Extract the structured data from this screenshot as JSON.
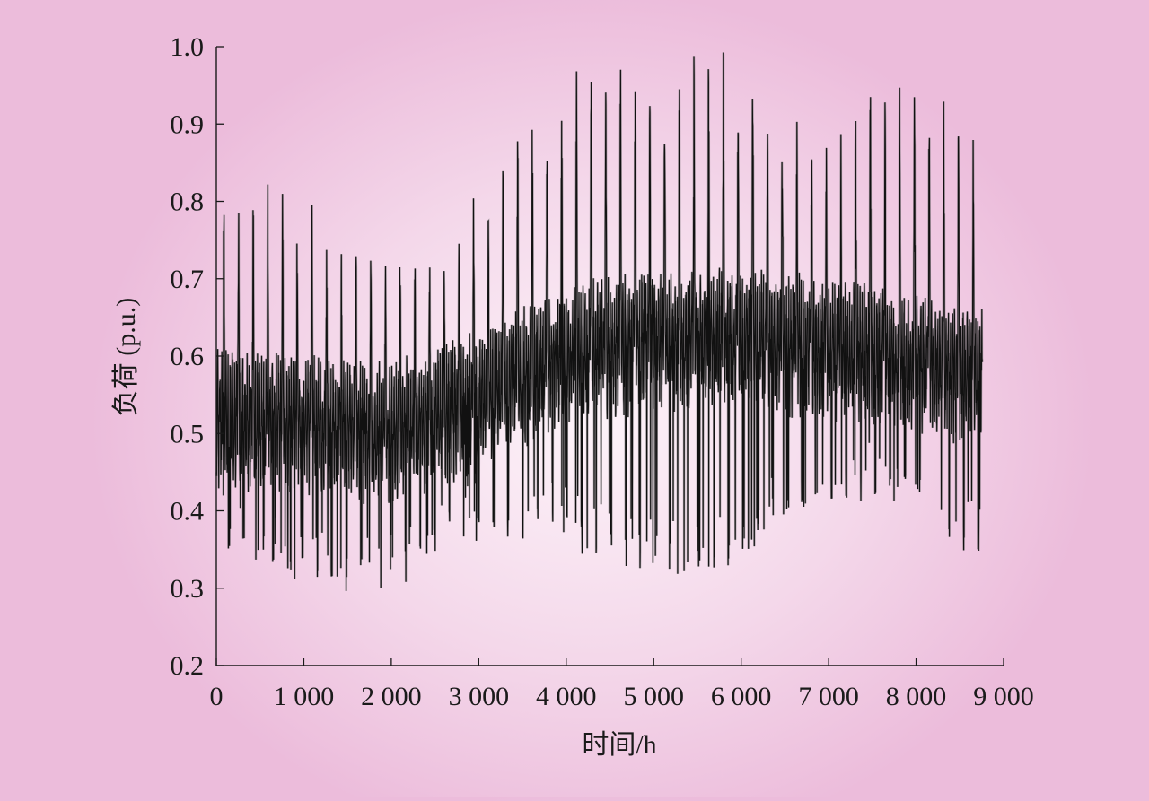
{
  "chart_data": {
    "type": "line",
    "title": "",
    "xlabel": "时间/h",
    "ylabel": "负荷 (p.u.)",
    "xlim": [
      0,
      9000
    ],
    "ylim": [
      0.2,
      1.0
    ],
    "xticks": [
      0,
      1000,
      2000,
      3000,
      4000,
      5000,
      6000,
      7000,
      8000,
      9000
    ],
    "xtick_labels": [
      "0",
      "1 000",
      "2 000",
      "3 000",
      "4 000",
      "5 000",
      "6 000",
      "7 000",
      "8 000",
      "9 000"
    ],
    "yticks": [
      0.2,
      0.3,
      0.4,
      0.5,
      0.6,
      0.7,
      0.8,
      0.9,
      1.0
    ],
    "ytick_labels": [
      "0.2",
      "0.3",
      "0.4",
      "0.5",
      "0.6",
      "0.7",
      "0.8",
      "0.9",
      "1.0"
    ],
    "grid": false,
    "legend": "none",
    "line_color": "#111111",
    "series": [
      {
        "name": "",
        "hours": 8760,
        "base_envelope": [
          {
            "x": 0,
            "y": 0.52
          },
          {
            "x": 1000,
            "y": 0.51
          },
          {
            "x": 2000,
            "y": 0.5
          },
          {
            "x": 2500,
            "y": 0.52
          },
          {
            "x": 3000,
            "y": 0.54
          },
          {
            "x": 3500,
            "y": 0.57
          },
          {
            "x": 4000,
            "y": 0.6
          },
          {
            "x": 5000,
            "y": 0.62
          },
          {
            "x": 6000,
            "y": 0.62
          },
          {
            "x": 7000,
            "y": 0.61
          },
          {
            "x": 8000,
            "y": 0.59
          },
          {
            "x": 8760,
            "y": 0.57
          }
        ],
        "weekly_peaks": [
          {
            "x": 210,
            "y": 0.83
          },
          {
            "x": 570,
            "y": 0.81
          },
          {
            "x": 930,
            "y": 0.78
          },
          {
            "x": 1290,
            "y": 0.75
          },
          {
            "x": 1650,
            "y": 0.74
          },
          {
            "x": 2000,
            "y": 0.73
          },
          {
            "x": 2370,
            "y": 0.73
          },
          {
            "x": 2730,
            "y": 0.75
          },
          {
            "x": 3100,
            "y": 0.82
          },
          {
            "x": 3480,
            "y": 0.91
          },
          {
            "x": 3850,
            "y": 0.97
          },
          {
            "x": 4210,
            "y": 0.98
          },
          {
            "x": 4580,
            "y": 0.97
          },
          {
            "x": 4950,
            "y": 1.0
          },
          {
            "x": 5310,
            "y": 1.0
          },
          {
            "x": 5680,
            "y": 0.99
          },
          {
            "x": 6050,
            "y": 0.98
          },
          {
            "x": 6420,
            "y": 0.93
          },
          {
            "x": 6790,
            "y": 0.89
          },
          {
            "x": 7150,
            "y": 0.9
          },
          {
            "x": 7520,
            "y": 0.96
          },
          {
            "x": 7890,
            "y": 0.97
          },
          {
            "x": 8250,
            "y": 0.95
          },
          {
            "x": 8620,
            "y": 0.88
          }
        ],
        "weekly_troughs": [
          {
            "x": 40,
            "y": 0.35
          },
          {
            "x": 400,
            "y": 0.33
          },
          {
            "x": 760,
            "y": 0.31
          },
          {
            "x": 1120,
            "y": 0.3
          },
          {
            "x": 1480,
            "y": 0.29
          },
          {
            "x": 1850,
            "y": 0.29
          },
          {
            "x": 2200,
            "y": 0.3
          },
          {
            "x": 2580,
            "y": 0.35
          },
          {
            "x": 2950,
            "y": 0.36
          },
          {
            "x": 3320,
            "y": 0.36
          },
          {
            "x": 3700,
            "y": 0.36
          },
          {
            "x": 4060,
            "y": 0.35
          },
          {
            "x": 4430,
            "y": 0.33
          },
          {
            "x": 4800,
            "y": 0.32
          },
          {
            "x": 5160,
            "y": 0.31
          },
          {
            "x": 5530,
            "y": 0.31
          },
          {
            "x": 5900,
            "y": 0.33
          },
          {
            "x": 6270,
            "y": 0.36
          },
          {
            "x": 6630,
            "y": 0.39
          },
          {
            "x": 7000,
            "y": 0.4
          },
          {
            "x": 7370,
            "y": 0.41
          },
          {
            "x": 7740,
            "y": 0.41
          },
          {
            "x": 8110,
            "y": 0.39
          },
          {
            "x": 8480,
            "y": 0.34
          }
        ]
      }
    ]
  }
}
